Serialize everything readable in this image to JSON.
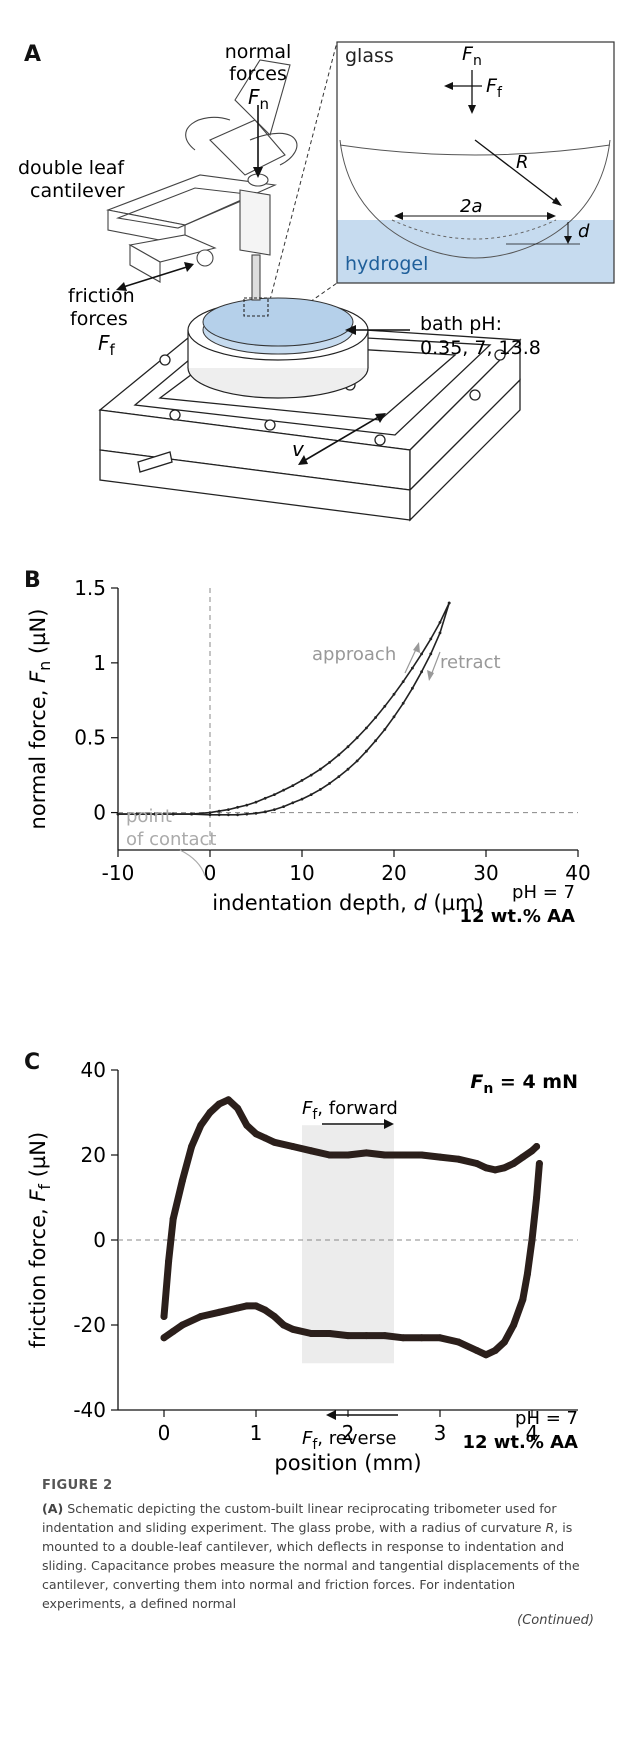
{
  "figure": {
    "label": "FIGURE 2",
    "caption_lead": "(A)",
    "caption": " Schematic depicting the custom-built linear reciprocating tribometer used for indentation and sliding experiment. The glass probe, with a radius of curvature ",
    "caption_R": "R",
    "caption_rest": ", is mounted to a double-leaf cantilever, which deflects in response to indentation and sliding. Capacitance probes measure the normal and tangential displacements of the cantilever, converting them into normal and friction forces. For indentation experiments, a defined normal",
    "continued": "(Continued)"
  },
  "panelA": {
    "letter": "A",
    "normal_forces": [
      "normal",
      "forces"
    ],
    "Fn_sym": "F",
    "Fn_sub": "n",
    "double_leaf": [
      "double leaf",
      "cantilever"
    ],
    "friction_forces": [
      "friction",
      "forces"
    ],
    "Ff_sym": "F",
    "Ff_sub": "f",
    "bath_ph": [
      "bath pH:",
      "0.35, 7, 13.8"
    ],
    "v": "v",
    "inset": {
      "glass": "glass",
      "hydrogel": "hydrogel",
      "R": "R",
      "two_a": "2a",
      "d": "d",
      "Fn_sym": "F",
      "Fn_sub": "n",
      "Ff_sym": "F",
      "Ff_sub": "f"
    },
    "colors": {
      "hydrogel": "#c6dbef",
      "hydrogel_text": "#1f5f9a"
    }
  },
  "panelB": {
    "letter": "B",
    "annot_approach": "approach",
    "annot_retract": "retract",
    "annot_contact": [
      "point",
      "of contact"
    ],
    "annot_ph": "pH = 7",
    "annot_wt": "12 wt.% AA",
    "chart_data": {
      "type": "line",
      "xlabel_pre": "indentation depth, ",
      "xlabel_var": "d",
      "xlabel_unit": " (µm)",
      "ylabel_pre": "normal force, ",
      "ylabel_var": "F",
      "ylabel_sub": "n",
      "ylabel_unit": " (µN)",
      "xlim": [
        -10,
        40
      ],
      "ylim": [
        -0.25,
        1.5
      ],
      "xticks": [
        "-10",
        "0",
        "10",
        "20",
        "30",
        "40"
      ],
      "yticks": [
        "0",
        "0.5",
        "1",
        "1.5"
      ],
      "series": [
        {
          "x": [
            -10,
            -8,
            -6,
            -4,
            -2,
            0,
            1,
            2,
            3,
            4,
            5,
            6,
            7,
            8,
            9,
            10,
            11,
            12,
            13,
            14,
            15,
            16,
            17,
            18,
            19,
            20,
            21,
            22,
            23,
            24,
            25,
            26
          ],
          "y": [
            -0.01,
            -0.01,
            -0.01,
            -0.01,
            -0.01,
            0.0,
            0.01,
            0.02,
            0.035,
            0.05,
            0.07,
            0.095,
            0.12,
            0.15,
            0.18,
            0.215,
            0.25,
            0.29,
            0.335,
            0.385,
            0.44,
            0.5,
            0.565,
            0.635,
            0.71,
            0.79,
            0.875,
            0.965,
            1.06,
            1.16,
            1.27,
            1.4
          ]
        },
        {
          "x": [
            -10,
            -8,
            -6,
            -4,
            -2,
            0,
            1,
            2,
            3,
            4,
            5,
            6,
            7,
            8,
            9,
            10,
            11,
            12,
            13,
            14,
            15,
            16,
            17,
            18,
            19,
            20,
            21,
            22,
            23,
            24,
            25,
            26
          ],
          "y": [
            -0.01,
            -0.01,
            -0.01,
            -0.01,
            -0.01,
            -0.015,
            -0.015,
            -0.015,
            -0.015,
            -0.01,
            -0.005,
            0.005,
            0.02,
            0.04,
            0.065,
            0.09,
            0.12,
            0.155,
            0.195,
            0.24,
            0.29,
            0.345,
            0.41,
            0.48,
            0.555,
            0.64,
            0.73,
            0.83,
            0.94,
            1.06,
            1.2,
            1.4
          ]
        }
      ]
    }
  },
  "panelC": {
    "letter": "C",
    "annot_fn_sym": "F",
    "annot_fn_sub": "n",
    "annot_fn_val": " = 4 mN",
    "annot_fwd_sym": "F",
    "annot_fwd_sub": "f",
    "annot_fwd_txt": ", forward",
    "annot_rev_sym": "F",
    "annot_rev_sub": "f",
    "annot_rev_txt": ", reverse",
    "annot_ph": "pH = 7",
    "annot_wt": "12 wt.% AA",
    "chart_data": {
      "type": "line",
      "xlabel": "position (mm)",
      "ylabel_pre": "friction force, ",
      "ylabel_var": "F",
      "ylabel_sub": "f",
      "ylabel_unit": " (µN)",
      "xlim": [
        -0.5,
        4.5
      ],
      "ylim": [
        -40,
        40
      ],
      "xticks": [
        "0",
        "1",
        "2",
        "3",
        "4"
      ],
      "yticks": [
        "-40",
        "-20",
        "0",
        "20",
        "40"
      ],
      "shaded_region": [
        1.5,
        2.5
      ],
      "series": [
        {
          "name": "forward",
          "x": [
            0.0,
            0.05,
            0.1,
            0.2,
            0.3,
            0.4,
            0.5,
            0.6,
            0.7,
            0.8,
            0.9,
            1.0,
            1.1,
            1.2,
            1.4,
            1.6,
            1.8,
            2.0,
            2.2,
            2.4,
            2.6,
            2.8,
            3.0,
            3.2,
            3.4,
            3.5,
            3.6,
            3.7,
            3.8,
            3.9,
            4.0,
            4.05
          ],
          "y": [
            -18,
            -5,
            5,
            14,
            22,
            27,
            30,
            32,
            33,
            31,
            27,
            25,
            24,
            23,
            22,
            21,
            20,
            20,
            20.5,
            20,
            20,
            20,
            19.5,
            19,
            18,
            17,
            16.5,
            17,
            18,
            19.5,
            21,
            22
          ]
        },
        {
          "name": "reverse",
          "x": [
            4.08,
            4.05,
            4.0,
            3.95,
            3.9,
            3.8,
            3.7,
            3.6,
            3.5,
            3.4,
            3.2,
            3.0,
            2.8,
            2.6,
            2.4,
            2.2,
            2.0,
            1.8,
            1.6,
            1.4,
            1.3,
            1.2,
            1.1,
            1.0,
            0.9,
            0.8,
            0.6,
            0.4,
            0.2,
            0.1,
            0.0
          ],
          "y": [
            18,
            10,
            0,
            -8,
            -14,
            -20,
            -24,
            -26,
            -27,
            -26,
            -24,
            -23,
            -23,
            -23,
            -22.5,
            -22.5,
            -22.5,
            -22,
            -22,
            -21,
            -20,
            -18,
            -16.5,
            -15.5,
            -15.5,
            -16,
            -17,
            -18,
            -20,
            -21.5,
            -23
          ]
        }
      ]
    }
  }
}
